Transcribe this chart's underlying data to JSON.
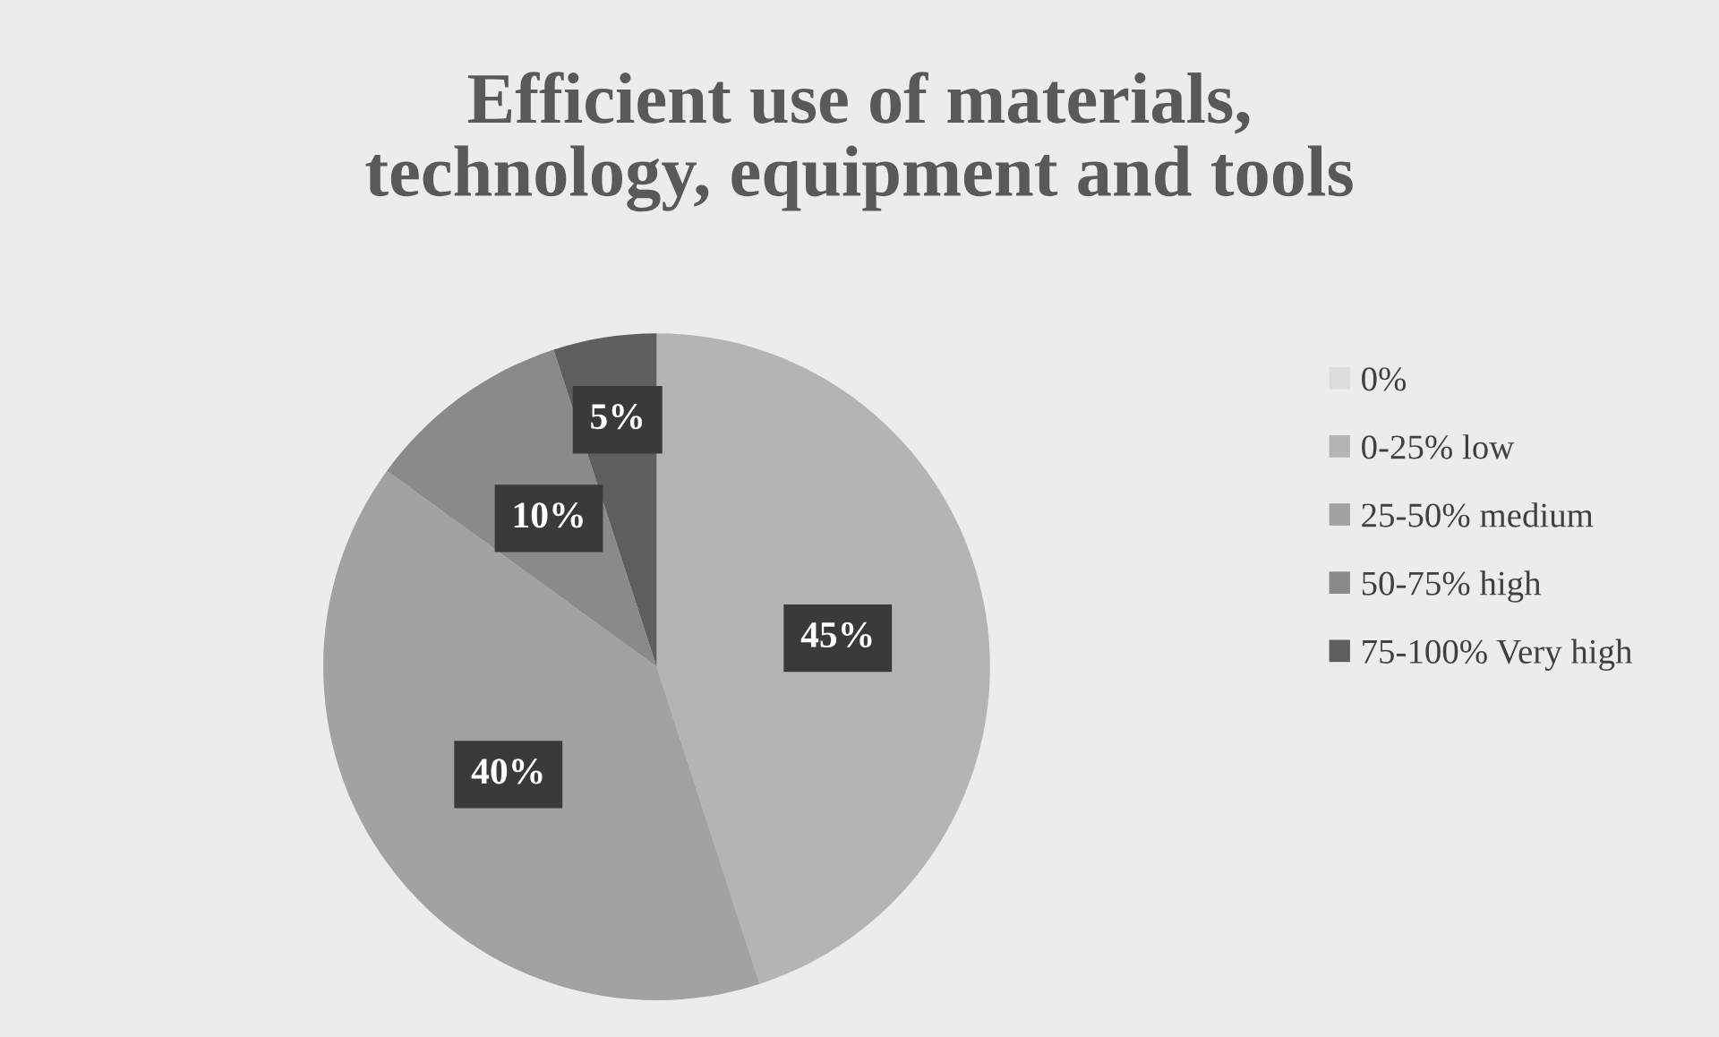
{
  "chart_data": {
    "type": "pie",
    "title": "Efficient use of materials,\ntechnology, equipment and tools",
    "categories": [
      "0%",
      "0-25% low",
      "25-50% medium",
      "50-75% high",
      "75-100% Very high"
    ],
    "values": [
      0,
      45,
      40,
      10,
      5
    ],
    "colors": [
      "#dcdcdc",
      "#b4b4b4",
      "#a2a2a2",
      "#8a8a8a",
      "#5e5e5e"
    ],
    "value_labels": [
      null,
      "45%",
      "40%",
      "10%",
      "5%"
    ],
    "legend": "right"
  }
}
